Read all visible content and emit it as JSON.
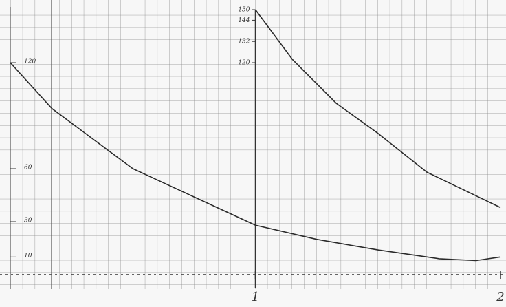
{
  "chart_data": {
    "type": "line",
    "color": "#2a2a2a",
    "grid": true,
    "xlim": [
      0,
      2
    ],
    "ylim": [
      0,
      150
    ],
    "xticks": [
      1,
      2
    ],
    "yticks": [
      10,
      30,
      60,
      120
    ],
    "yticks_at_x1": [
      120,
      132,
      144,
      150
    ],
    "series": [
      {
        "x": [
          0,
          0.17,
          0.5,
          0.75,
          1,
          1.25,
          1.5,
          1.75,
          1.9,
          2
        ],
        "values": [
          120,
          94,
          60,
          44,
          28,
          20,
          14,
          9,
          8,
          10
        ]
      },
      {
        "x": [
          1,
          1.15,
          1.33,
          1.5,
          1.7,
          1.85,
          2
        ],
        "values": [
          150,
          122,
          97,
          80,
          58,
          48,
          38
        ]
      }
    ]
  }
}
